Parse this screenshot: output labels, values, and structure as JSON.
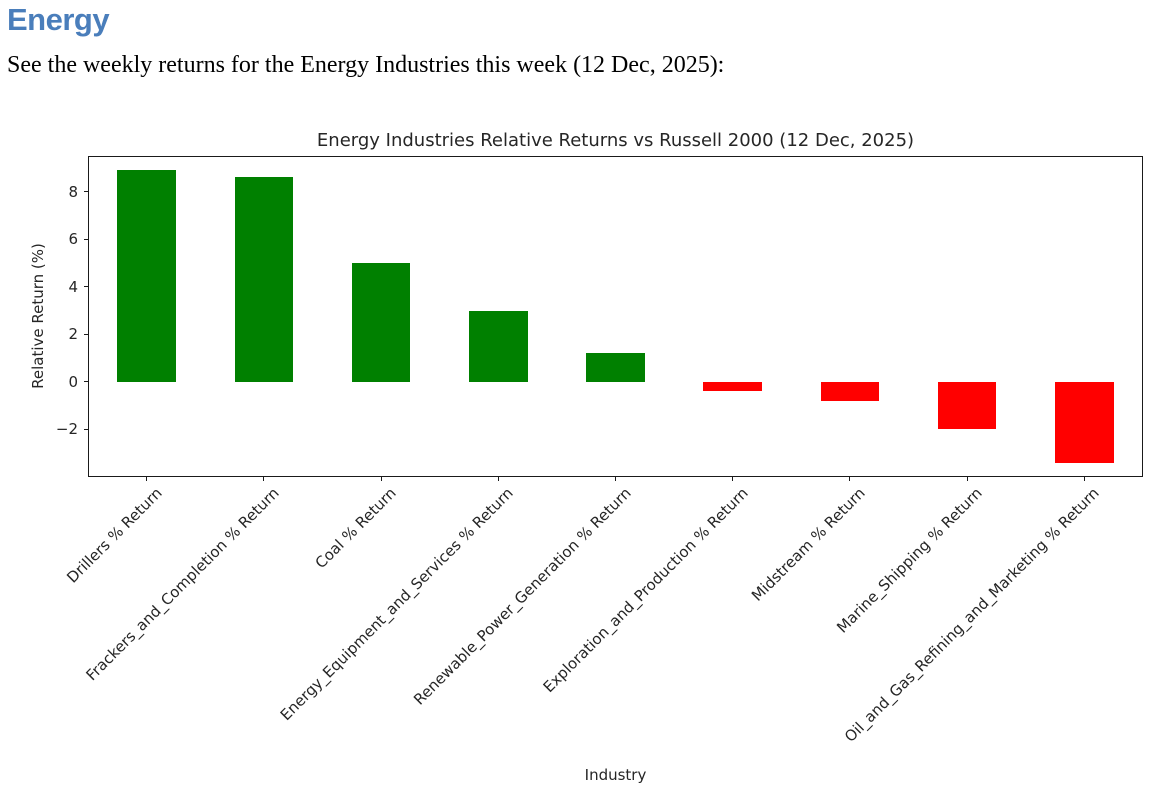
{
  "page": {
    "heading": "Energy",
    "heading_color": "#4a7ebb",
    "intro": "See the weekly returns for the Energy Industries this week (12 Dec, 2025):"
  },
  "chart_data": {
    "type": "bar",
    "title": "Energy Industries Relative Returns vs Russell 2000 (12 Dec, 2025)",
    "xlabel": "Industry",
    "ylabel": "Relative Return (%)",
    "categories": [
      "Drillers % Return",
      "Frackers_and_Completion % Return",
      "Coal % Return",
      "Energy_Equipment_and_Services % Return",
      "Renewable_Power_Generation % Return",
      "Exploration_and_Production % Return",
      "Midstream % Return",
      "Marine_Shipping % Return",
      "Oil_and_Gas_Refining_and_Marketing % Return"
    ],
    "values": [
      8.9,
      8.6,
      5.0,
      3.0,
      1.2,
      -0.4,
      -0.8,
      -2.0,
      -3.4
    ],
    "positive_color": "#008000",
    "negative_color": "#ff0000",
    "ylim": [
      -4.0,
      9.5
    ],
    "yticks": [
      8,
      6,
      4,
      2,
      0,
      -2
    ],
    "bar_width_fraction": 0.5,
    "grid": false,
    "legend": false,
    "x_tick_rotation_deg": 45
  }
}
